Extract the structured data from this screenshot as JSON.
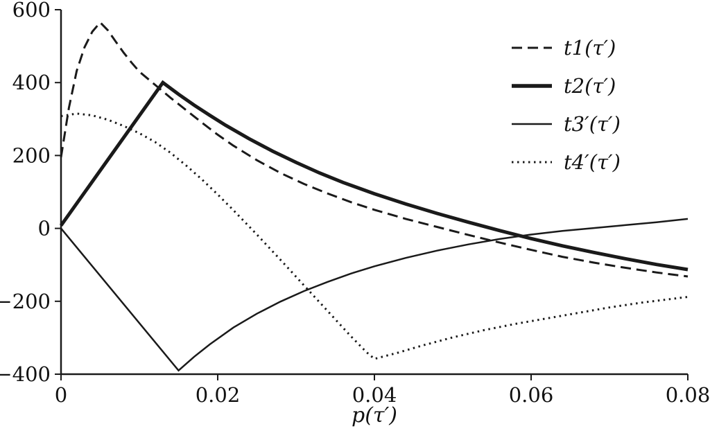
{
  "figure": {
    "background": "#ffffff",
    "ink_color": "#1a1a1a"
  },
  "chart_data": {
    "type": "line",
    "title": "",
    "xlabel": "p(τ′)",
    "ylabel": "",
    "xlim": [
      0,
      0.08
    ],
    "ylim": [
      -400,
      600
    ],
    "grid": false,
    "legend_position": "top-right",
    "xticks": {
      "values": [
        0,
        0.02,
        0.04,
        0.06,
        0.08
      ],
      "labels": [
        "0",
        "0.02",
        "0.04",
        "0.06",
        "0.08"
      ]
    },
    "yticks": {
      "values": [
        -400,
        -200,
        0,
        200,
        400,
        600
      ],
      "labels": [
        "−400",
        "−200",
        "0",
        "200",
        "400",
        "600"
      ]
    },
    "series": [
      {
        "name": "t1(τ′)",
        "style": "dashed",
        "points": [
          [
            0,
            195
          ],
          [
            0.001,
            330
          ],
          [
            0.002,
            432
          ],
          [
            0.003,
            497
          ],
          [
            0.004,
            540
          ],
          [
            0.005,
            565
          ],
          [
            0.006,
            543
          ],
          [
            0.007,
            512
          ],
          [
            0.008,
            482
          ],
          [
            0.009,
            455
          ],
          [
            0.01,
            430
          ],
          [
            0.012,
            394
          ],
          [
            0.014,
            358
          ],
          [
            0.016,
            324
          ],
          [
            0.018,
            290
          ],
          [
            0.02,
            257
          ],
          [
            0.022,
            227
          ],
          [
            0.025,
            187
          ],
          [
            0.028,
            152
          ],
          [
            0.031,
            122
          ],
          [
            0.034,
            96
          ],
          [
            0.037,
            72
          ],
          [
            0.04,
            51
          ],
          [
            0.044,
            26
          ],
          [
            0.048,
            4
          ],
          [
            0.052,
            -18
          ],
          [
            0.056,
            -39
          ],
          [
            0.06,
            -59
          ],
          [
            0.064,
            -78
          ],
          [
            0.068,
            -94
          ],
          [
            0.072,
            -108
          ],
          [
            0.076,
            -121
          ],
          [
            0.08,
            -132
          ]
        ]
      },
      {
        "name": "t2(τ′)",
        "style": "solid-thick",
        "points": [
          [
            0,
            8
          ],
          [
            0.013,
            400
          ],
          [
            0.015,
            368
          ],
          [
            0.017,
            338
          ],
          [
            0.019,
            310
          ],
          [
            0.021,
            283
          ],
          [
            0.024,
            246
          ],
          [
            0.027,
            212
          ],
          [
            0.03,
            181
          ],
          [
            0.033,
            152
          ],
          [
            0.036,
            126
          ],
          [
            0.04,
            95
          ],
          [
            0.044,
            67
          ],
          [
            0.048,
            41
          ],
          [
            0.052,
            17
          ],
          [
            0.056,
            -6
          ],
          [
            0.06,
            -28
          ],
          [
            0.064,
            -48
          ],
          [
            0.068,
            -66
          ],
          [
            0.072,
            -83
          ],
          [
            0.076,
            -99
          ],
          [
            0.08,
            -113
          ]
        ]
      },
      {
        "name": "t3′(τ′)",
        "style": "solid",
        "points": [
          [
            0,
            0
          ],
          [
            0.015,
            -390
          ],
          [
            0.017,
            -352
          ],
          [
            0.019,
            -318
          ],
          [
            0.022,
            -272
          ],
          [
            0.025,
            -234
          ],
          [
            0.028,
            -201
          ],
          [
            0.031,
            -172
          ],
          [
            0.034,
            -147
          ],
          [
            0.037,
            -124
          ],
          [
            0.04,
            -104
          ],
          [
            0.044,
            -81
          ],
          [
            0.048,
            -61
          ],
          [
            0.052,
            -44
          ],
          [
            0.056,
            -29
          ],
          [
            0.06,
            -17
          ],
          [
            0.064,
            -7
          ],
          [
            0.068,
            1
          ],
          [
            0.072,
            9
          ],
          [
            0.076,
            17
          ],
          [
            0.08,
            26
          ]
        ]
      },
      {
        "name": "t4′(τ′)",
        "style": "dotted",
        "points": [
          [
            0,
            308
          ],
          [
            0.002,
            315
          ],
          [
            0.004,
            310
          ],
          [
            0.006,
            298
          ],
          [
            0.008,
            281
          ],
          [
            0.01,
            261
          ],
          [
            0.012,
            237
          ],
          [
            0.014,
            207
          ],
          [
            0.016,
            172
          ],
          [
            0.018,
            134
          ],
          [
            0.02,
            93
          ],
          [
            0.022,
            50
          ],
          [
            0.025,
            -17
          ],
          [
            0.028,
            -86
          ],
          [
            0.031,
            -156
          ],
          [
            0.034,
            -226
          ],
          [
            0.037,
            -296
          ],
          [
            0.039,
            -340
          ],
          [
            0.04,
            -358
          ],
          [
            0.043,
            -341
          ],
          [
            0.046,
            -322
          ],
          [
            0.05,
            -299
          ],
          [
            0.054,
            -279
          ],
          [
            0.058,
            -262
          ],
          [
            0.062,
            -247
          ],
          [
            0.066,
            -232
          ],
          [
            0.07,
            -217
          ],
          [
            0.074,
            -204
          ],
          [
            0.08,
            -188
          ]
        ]
      }
    ]
  }
}
